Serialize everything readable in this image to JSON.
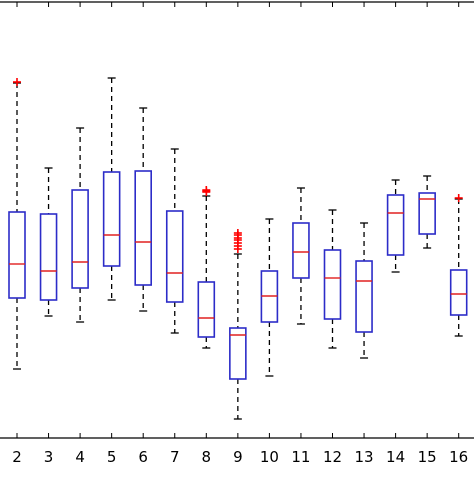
{
  "chart_data": {
    "type": "boxplot",
    "title": "",
    "xlabel": "",
    "ylabel": "",
    "grid": false,
    "categories": [
      "2",
      "3",
      "4",
      "5",
      "6",
      "7",
      "8",
      "9",
      "10",
      "11",
      "12",
      "13",
      "14",
      "15",
      "16"
    ],
    "box_color": "#2c2cc8",
    "median_color": "#e02020",
    "outlier_color": "#ff0000",
    "whisker_color": "#000000",
    "ylim": [
      0,
      474
    ],
    "boxes": [
      {
        "label": "2",
        "whisker_high": 391,
        "q3": 262,
        "median": 210,
        "q1": 176,
        "whisker_low": 105,
        "outliers": [
          392
        ]
      },
      {
        "label": "3",
        "whisker_high": 306,
        "q3": 260,
        "median": 203,
        "q1": 174,
        "whisker_low": 158,
        "outliers": []
      },
      {
        "label": "4",
        "whisker_high": 346,
        "q3": 284,
        "median": 212,
        "q1": 186,
        "whisker_low": 152,
        "outliers": []
      },
      {
        "label": "5",
        "whisker_high": 396,
        "q3": 302,
        "median": 239,
        "q1": 208,
        "whisker_low": 174,
        "outliers": []
      },
      {
        "label": "6",
        "whisker_high": 366,
        "q3": 303,
        "median": 232,
        "q1": 189,
        "whisker_low": 163,
        "outliers": []
      },
      {
        "label": "7",
        "whisker_high": 325,
        "q3": 263,
        "median": 201,
        "q1": 172,
        "whisker_low": 141,
        "outliers": []
      },
      {
        "label": "8",
        "whisker_high": 278,
        "q3": 192,
        "median": 156,
        "q1": 137,
        "whisker_low": 126,
        "outliers": [
          282,
          283,
          284
        ]
      },
      {
        "label": "9",
        "whisker_high": 220,
        "q3": 146,
        "median": 139,
        "q1": 95,
        "whisker_low": 55,
        "outliers": [
          225,
          228,
          231,
          234,
          236,
          239,
          241
        ]
      },
      {
        "label": "10",
        "whisker_high": 255,
        "q3": 203,
        "median": 178,
        "q1": 152,
        "whisker_low": 98,
        "outliers": []
      },
      {
        "label": "11",
        "whisker_high": 286,
        "q3": 251,
        "median": 222,
        "q1": 196,
        "whisker_low": 150,
        "outliers": []
      },
      {
        "label": "12",
        "whisker_high": 264,
        "q3": 224,
        "median": 196,
        "q1": 155,
        "whisker_low": 126,
        "outliers": []
      },
      {
        "label": "13",
        "whisker_high": 251,
        "q3": 213,
        "median": 193,
        "q1": 142,
        "whisker_low": 116,
        "outliers": []
      },
      {
        "label": "14",
        "whisker_high": 294,
        "q3": 279,
        "median": 261,
        "q1": 219,
        "whisker_low": 202,
        "outliers": []
      },
      {
        "label": "15",
        "whisker_high": 298,
        "q3": 281,
        "median": 275,
        "q1": 240,
        "whisker_low": 226,
        "outliers": []
      },
      {
        "label": "16",
        "whisker_high": 275,
        "q3": 204,
        "median": 180,
        "q1": 159,
        "whisker_low": 138,
        "outliers": [
          276
        ]
      }
    ]
  }
}
